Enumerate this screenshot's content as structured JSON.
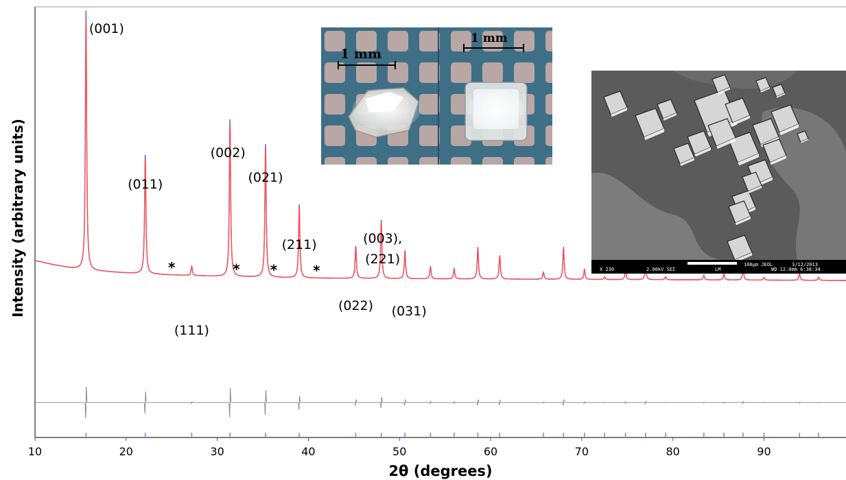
{
  "chart_data": {
    "type": "line",
    "title": "",
    "xlabel": "2θ (degrees)",
    "ylabel": "Intensity (arbitrary units)",
    "xlim": [
      10,
      99
    ],
    "xticks": [
      10,
      20,
      30,
      40,
      50,
      60,
      70,
      80,
      90
    ],
    "ylim": [
      0,
      100
    ],
    "grid": false,
    "legend": "none",
    "baseline": {
      "x": [
        10,
        12,
        14,
        15.5,
        16,
        20,
        25,
        30,
        40,
        50,
        60,
        70,
        80,
        90,
        99
      ],
      "y": [
        27,
        25.8,
        24.8,
        24.3,
        24.1,
        23.4,
        22.8,
        22.4,
        21.9,
        21.7,
        21.6,
        21.5,
        21.4,
        21.3,
        21.2
      ]
    },
    "peaks": [
      {
        "x": 15.6,
        "h": 75.7,
        "label": "(001)"
      },
      {
        "x": 22.1,
        "h": 34.7,
        "label": "(011)"
      },
      {
        "x": 27.2,
        "h": 2.7,
        "label": "(111)"
      },
      {
        "x": 31.4,
        "h": 45.8,
        "label": "(002)"
      },
      {
        "x": 35.3,
        "h": 38.8,
        "label": "(021)"
      },
      {
        "x": 39.0,
        "h": 21.4,
        "label": "(211)"
      },
      {
        "x": 45.2,
        "h": 9.4,
        "label": "(022)"
      },
      {
        "x": 48.0,
        "h": 17.1,
        "label": "(003),\n(221)"
      },
      {
        "x": 50.6,
        "h": 8.2,
        "label": "(031)"
      },
      {
        "x": 53.4,
        "h": 3.5,
        "label": ""
      },
      {
        "x": 56.0,
        "h": 3.0,
        "label": ""
      },
      {
        "x": 58.6,
        "h": 9.3,
        "label": ""
      },
      {
        "x": 61.0,
        "h": 6.9,
        "label": ""
      },
      {
        "x": 65.8,
        "h": 2.1,
        "label": ""
      },
      {
        "x": 68.0,
        "h": 9.4,
        "label": ""
      },
      {
        "x": 70.3,
        "h": 2.9,
        "label": ""
      },
      {
        "x": 72.5,
        "h": 0.8,
        "label": ""
      },
      {
        "x": 74.8,
        "h": 2.6,
        "label": ""
      },
      {
        "x": 77.0,
        "h": 4.4,
        "label": ""
      },
      {
        "x": 79.2,
        "h": 0.9,
        "label": ""
      },
      {
        "x": 83.4,
        "h": 1.4,
        "label": ""
      },
      {
        "x": 85.6,
        "h": 1.8,
        "label": ""
      },
      {
        "x": 87.7,
        "h": 3.4,
        "label": ""
      },
      {
        "x": 90.0,
        "h": 0.8,
        "label": ""
      },
      {
        "x": 93.9,
        "h": 2.0,
        "label": ""
      },
      {
        "x": 96.0,
        "h": 0.9,
        "label": ""
      }
    ],
    "impurity_markers": [
      {
        "x": 25.0,
        "label": "*"
      },
      {
        "x": 32.1,
        "label": "*"
      },
      {
        "x": 36.2,
        "label": "*"
      },
      {
        "x": 40.9,
        "label": "*"
      }
    ],
    "colors": {
      "observed": "#5a5aff",
      "calculated": "#ff4d4d",
      "difference": "#8c8c8c",
      "bragg_ticks": "#7a7aff",
      "axis": "#555555"
    }
  },
  "insets": {
    "photo": {
      "scale_left": "1 mm",
      "scale_right": "1 mm"
    },
    "sem": {
      "footer": [
        "X 230",
        "2.00kV SEI",
        "LM",
        "100µm JEOL",
        "3/12/2013",
        "WD 12.0mm 6:38:34"
      ]
    }
  }
}
